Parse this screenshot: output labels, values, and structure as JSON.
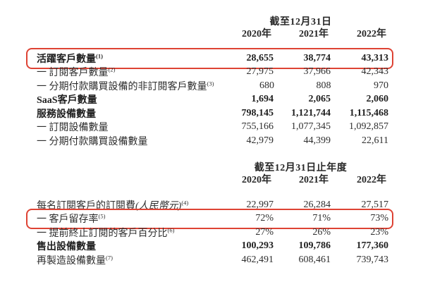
{
  "page": {
    "background": "#ffffff",
    "text_color": "#2e2e2e",
    "highlight_border_color": "#de4334"
  },
  "table1": {
    "caption": "截至12月31日",
    "years": [
      "2020年",
      "2021年",
      "2022年"
    ],
    "rows": [
      {
        "label": "活躍客戶數量",
        "sup": "(1)",
        "values": [
          "28,655",
          "38,774",
          "43,313"
        ],
        "bold": true,
        "boxed": true
      },
      {
        "label": "一 訂閱客戶數量",
        "sup": "(2)",
        "values": [
          "27,975",
          "37,966",
          "42,343"
        ],
        "bold": false,
        "boxed": false
      },
      {
        "label": "一 分期付款購買設備的非訂閱客戶數量",
        "sup": "(3)",
        "values": [
          "680",
          "808",
          "970"
        ],
        "bold": false,
        "boxed": false
      },
      {
        "label": "SaaS客戶數量",
        "sup": "",
        "values": [
          "1,694",
          "2,065",
          "2,060"
        ],
        "bold": true,
        "boxed": false
      },
      {
        "label": "服務設備數量",
        "sup": "",
        "values": [
          "798,145",
          "1,121,744",
          "1,115,468"
        ],
        "bold": true,
        "boxed": false
      },
      {
        "label": "一 訂閱設備數量",
        "sup": "",
        "values": [
          "755,166",
          "1,077,345",
          "1,092,857"
        ],
        "bold": false,
        "boxed": false
      },
      {
        "label": "一 分期付款購買設備數量",
        "sup": "",
        "values": [
          "42,979",
          "44,399",
          "22,611"
        ],
        "bold": false,
        "boxed": false
      }
    ]
  },
  "table2": {
    "caption": "截至12月31日止年度",
    "years": [
      "2020年",
      "2021年",
      "2022年"
    ],
    "rows": [
      {
        "label": "每名訂閱客戶的訂閱費",
        "label_italic": "(人民幣元)",
        "sup": "(4)",
        "values": [
          "22,997",
          "26,284",
          "27,517"
        ],
        "bold": false,
        "boxed": false
      },
      {
        "label": "一 客戶留存率",
        "sup": "(5)",
        "values": [
          "72%",
          "71%",
          "73%"
        ],
        "bold": false,
        "boxed": true
      },
      {
        "label": "一 提前終止訂閱的客戶百分比",
        "sup": "(6)",
        "values": [
          "27%",
          "26%",
          "23%"
        ],
        "bold": false,
        "boxed": false
      },
      {
        "label": "售出設備數量",
        "sup": "",
        "values": [
          "100,293",
          "109,786",
          "177,360"
        ],
        "bold": true,
        "boxed": false
      },
      {
        "label": "再製造設備數量",
        "sup": "(7)",
        "values": [
          "462,491",
          "608,461",
          "739,743"
        ],
        "bold": false,
        "boxed": false
      }
    ]
  }
}
